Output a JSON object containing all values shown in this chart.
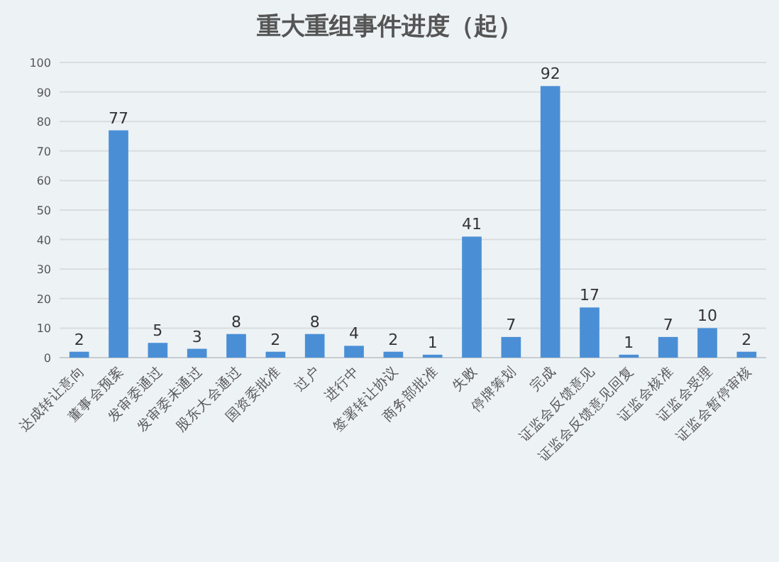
{
  "chart_data": {
    "type": "bar",
    "title": "重大重组事件进度（起）",
    "categories": [
      "达成转让意向",
      "董事会预案",
      "发审委通过",
      "发审委未通过",
      "股东大会通过",
      "国资委批准",
      "过户",
      "进行中",
      "签署转让协议",
      "商务部批准",
      "失败",
      "停牌筹划",
      "完成",
      "证监会反馈意见",
      "证监会反馈意见回复",
      "证监会核准",
      "证监会受理",
      "证监会暂停审核"
    ],
    "values": [
      2,
      77,
      5,
      3,
      8,
      2,
      8,
      4,
      2,
      1,
      41,
      7,
      92,
      17,
      1,
      7,
      10,
      2
    ],
    "color": "#4a8fd6",
    "ylim": [
      0,
      100
    ],
    "yticks": [
      0,
      10,
      20,
      30,
      40,
      50,
      60,
      70,
      80,
      90,
      100
    ],
    "grid": "y",
    "data_labels": true
  }
}
